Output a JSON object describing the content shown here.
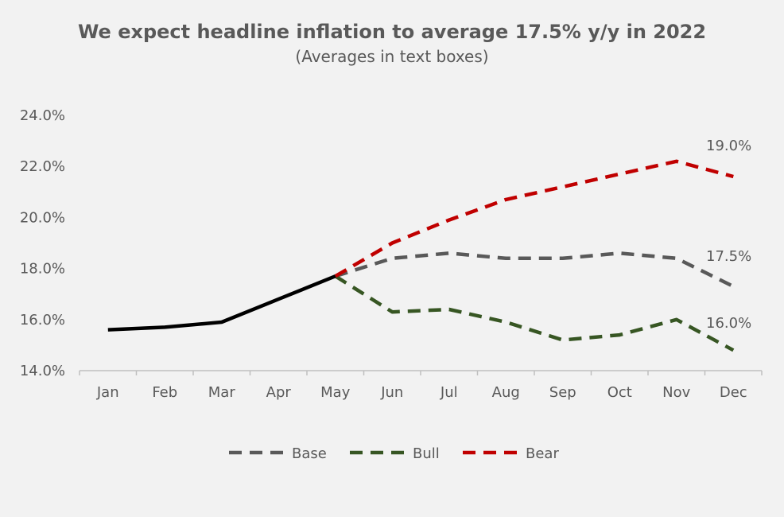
{
  "chart_data": {
    "type": "line",
    "title": "We expect headline inflation to average 17.5% y/y in 2022",
    "subtitle": "(Averages in text boxes)",
    "xlabel": "",
    "ylabel": "",
    "categories": [
      "Jan",
      "Feb",
      "Mar",
      "Apr",
      "May",
      "Jun",
      "Jul",
      "Aug",
      "Sep",
      "Oct",
      "Nov",
      "Dec"
    ],
    "y_ticks": [
      "14.0%",
      "16.0%",
      "18.0%",
      "20.0%",
      "22.0%",
      "24.0%"
    ],
    "ylim": [
      14,
      24
    ],
    "grid": false,
    "legend_position": "bottom",
    "series": [
      {
        "name": "",
        "style": "solid",
        "color": "#000000",
        "values": [
          15.6,
          15.7,
          15.9,
          16.8,
          17.7,
          null,
          null,
          null,
          null,
          null,
          null,
          null
        ]
      },
      {
        "name": "Base",
        "style": "dashed",
        "color": "#595959",
        "values": [
          null,
          null,
          null,
          null,
          17.7,
          18.4,
          18.6,
          18.4,
          18.4,
          18.6,
          18.4,
          17.3
        ]
      },
      {
        "name": "Bull",
        "style": "dashed",
        "color": "#375623",
        "values": [
          null,
          null,
          null,
          null,
          17.7,
          16.3,
          16.4,
          15.9,
          15.2,
          15.4,
          16.0,
          14.8
        ]
      },
      {
        "name": "Bear",
        "style": "dashed",
        "color": "#c00000",
        "values": [
          null,
          null,
          null,
          null,
          17.7,
          19.0,
          19.9,
          20.7,
          21.2,
          21.7,
          22.2,
          21.6
        ]
      }
    ],
    "annotations": [
      {
        "text": "19.0%",
        "series": "Bear"
      },
      {
        "text": "17.5%",
        "series": "Base"
      },
      {
        "text": "16.0%",
        "series": "Bull"
      }
    ]
  }
}
